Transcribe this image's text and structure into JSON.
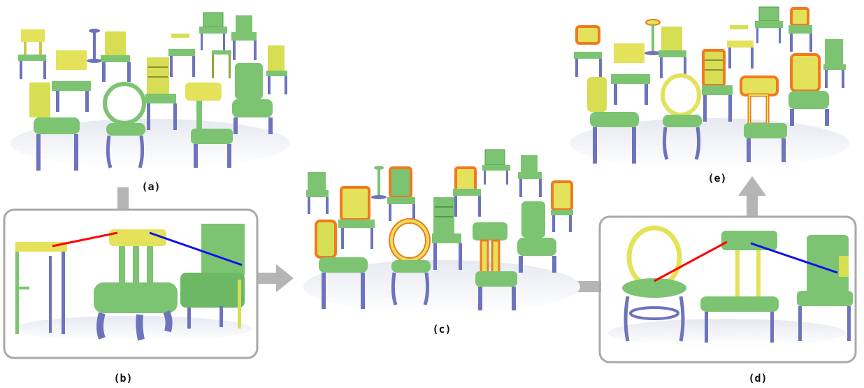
{
  "figure": {
    "labels": {
      "a": "(a)",
      "b": "(b)",
      "c": "(c)",
      "d": "(d)",
      "e": "(e)"
    }
  },
  "colors": {
    "seat": "#7cc472",
    "seat_dark": "#4e9a4c",
    "leg": "#6e73bd",
    "leg_dark": "#4a4f93",
    "highlight_yellow": "#e4e25a",
    "outline_orange": "#f07a1f",
    "outline_red": "#e0301c",
    "shadow": "#d9dde8",
    "frame": "#a9a9a9",
    "link_red": "#ff0000",
    "link_blue": "#1010ee"
  }
}
